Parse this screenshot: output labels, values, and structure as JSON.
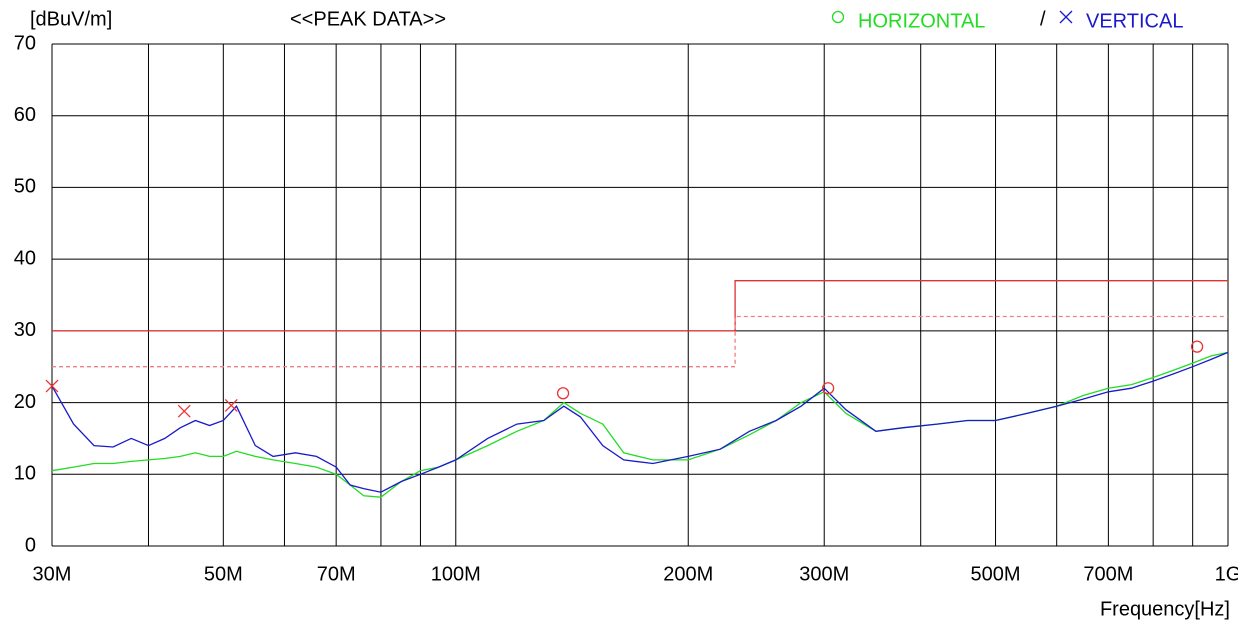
{
  "chart_data": {
    "type": "line",
    "title": "<<PEAK DATA>>",
    "y_label": "[dBuV/m]",
    "x_label": "Frequency[Hz]",
    "legend_separator": "/",
    "xscale": "log",
    "xlim": [
      30000000,
      1000000000
    ],
    "ylim": [
      0,
      70
    ],
    "yticks": [
      0,
      10,
      20,
      30,
      40,
      50,
      60,
      70
    ],
    "xticks": [
      {
        "value": 30000000,
        "label": "30M"
      },
      {
        "value": 50000000,
        "label": "50M"
      },
      {
        "value": 70000000,
        "label": "70M"
      },
      {
        "value": 100000000,
        "label": "100M"
      },
      {
        "value": 200000000,
        "label": "200M"
      },
      {
        "value": 300000000,
        "label": "300M"
      },
      {
        "value": 500000000,
        "label": "500M"
      },
      {
        "value": 700000000,
        "label": "700M"
      },
      {
        "value": 1000000000,
        "label": "1G"
      }
    ],
    "xgrid": [
      40000000,
      60000000,
      80000000,
      90000000,
      400000000,
      600000000,
      800000000,
      900000000
    ],
    "grid": true,
    "x": [
      30000000,
      32000000,
      34000000,
      36000000,
      38000000,
      40000000,
      42000000,
      44000000,
      46000000,
      48000000,
      50000000,
      52000000,
      55000000,
      58000000,
      62000000,
      66000000,
      70000000,
      73000000,
      76000000,
      80000000,
      85000000,
      90000000,
      95000000,
      100000000,
      110000000,
      120000000,
      130000000,
      138000000,
      145000000,
      155000000,
      165000000,
      180000000,
      200000000,
      220000000,
      240000000,
      260000000,
      280000000,
      300000000,
      320000000,
      350000000,
      380000000,
      420000000,
      460000000,
      500000000,
      550000000,
      600000000,
      650000000,
      700000000,
      750000000,
      800000000,
      850000000,
      900000000,
      950000000,
      1000000000
    ],
    "series": [
      {
        "name": "HORIZONTAL",
        "color": "#22dd22",
        "marker": "circle",
        "values": [
          10.5,
          11,
          11.5,
          11.5,
          11.8,
          12,
          12.2,
          12.5,
          13,
          12.5,
          12.5,
          13.2,
          12.5,
          12,
          11.5,
          11,
          10,
          8.5,
          7,
          6.8,
          9,
          10.5,
          11,
          12,
          14,
          16,
          17.5,
          20,
          18.5,
          17,
          13,
          12,
          12,
          13.5,
          15.5,
          17.5,
          20,
          21.5,
          18.5,
          16,
          16.5,
          17,
          17.5,
          17.5,
          18.5,
          19.5,
          21,
          22,
          22.5,
          23.5,
          24.5,
          25.5,
          26.5,
          27
        ]
      },
      {
        "name": "VERTICAL",
        "color": "#1a1acc",
        "marker": "cross",
        "values": [
          22.3,
          17,
          14,
          13.8,
          15,
          14,
          15,
          16.5,
          17.5,
          16.8,
          17.5,
          19.5,
          14,
          12.5,
          13,
          12.5,
          11,
          8.5,
          8,
          7.5,
          9,
          10,
          11,
          12,
          15,
          17,
          17.5,
          19.5,
          18,
          14,
          12,
          11.5,
          12.5,
          13.5,
          16,
          17.5,
          19.5,
          22,
          19,
          16,
          16.5,
          17,
          17.5,
          17.5,
          18.5,
          19.5,
          20.5,
          21.5,
          22,
          23,
          24,
          25,
          26,
          27
        ]
      }
    ],
    "limits": [
      {
        "color": "#e03030",
        "dash": false,
        "x": [
          30000000,
          230000000,
          230000000,
          1000000000
        ],
        "values": [
          30,
          30,
          37,
          37
        ]
      },
      {
        "color": "#f08080",
        "dash": true,
        "x": [
          30000000,
          230000000,
          230000000,
          1000000000
        ],
        "values": [
          25,
          25,
          32,
          32
        ]
      }
    ],
    "peaks": [
      {
        "series": 1,
        "x": 30000000,
        "y": 22.3
      },
      {
        "series": 1,
        "x": 44500000,
        "y": 18.8
      },
      {
        "series": 1,
        "x": 51200000,
        "y": 19.6
      },
      {
        "series": 0,
        "x": 137700000,
        "y": 21.3
      },
      {
        "series": 0,
        "x": 303500000,
        "y": 22
      },
      {
        "series": 0,
        "x": 912000000,
        "y": 27.8
      }
    ],
    "peak_color": "#ee3333"
  }
}
